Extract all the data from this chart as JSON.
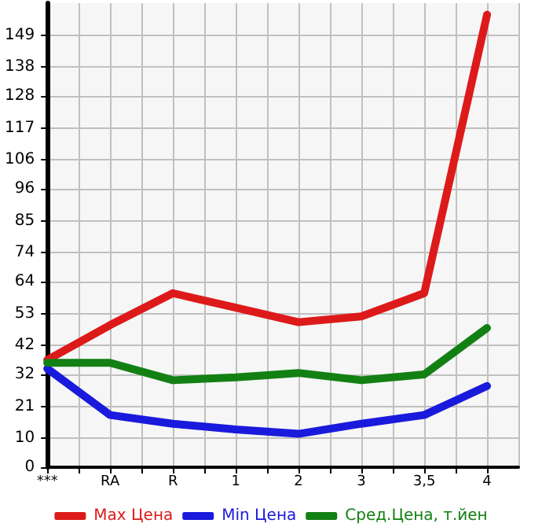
{
  "chart_data": {
    "type": "line",
    "categories": [
      "***",
      "RA",
      "R",
      "1",
      "2",
      "3",
      "3,5",
      "4"
    ],
    "series": [
      {
        "name": "Max Цена",
        "color": "#dd1a1a",
        "values": [
          37,
          49,
          60,
          55,
          50,
          52,
          60,
          156
        ]
      },
      {
        "name": "Min Цена",
        "color": "#1a1add",
        "values": [
          34,
          18,
          15,
          13,
          11.5,
          15,
          18,
          28
        ]
      },
      {
        "name": "Сред.Цена, т.йен",
        "color": "#138013",
        "values": [
          36,
          36,
          30,
          31,
          32.5,
          30,
          32,
          48
        ]
      }
    ],
    "ylim": [
      0,
      160
    ],
    "yticks": [
      0,
      10,
      21,
      32,
      42,
      53,
      64,
      74,
      85,
      96,
      106,
      117,
      128,
      138,
      149
    ],
    "grid": true,
    "legend": "bottom",
    "marker": "none",
    "line_style": "solid"
  }
}
